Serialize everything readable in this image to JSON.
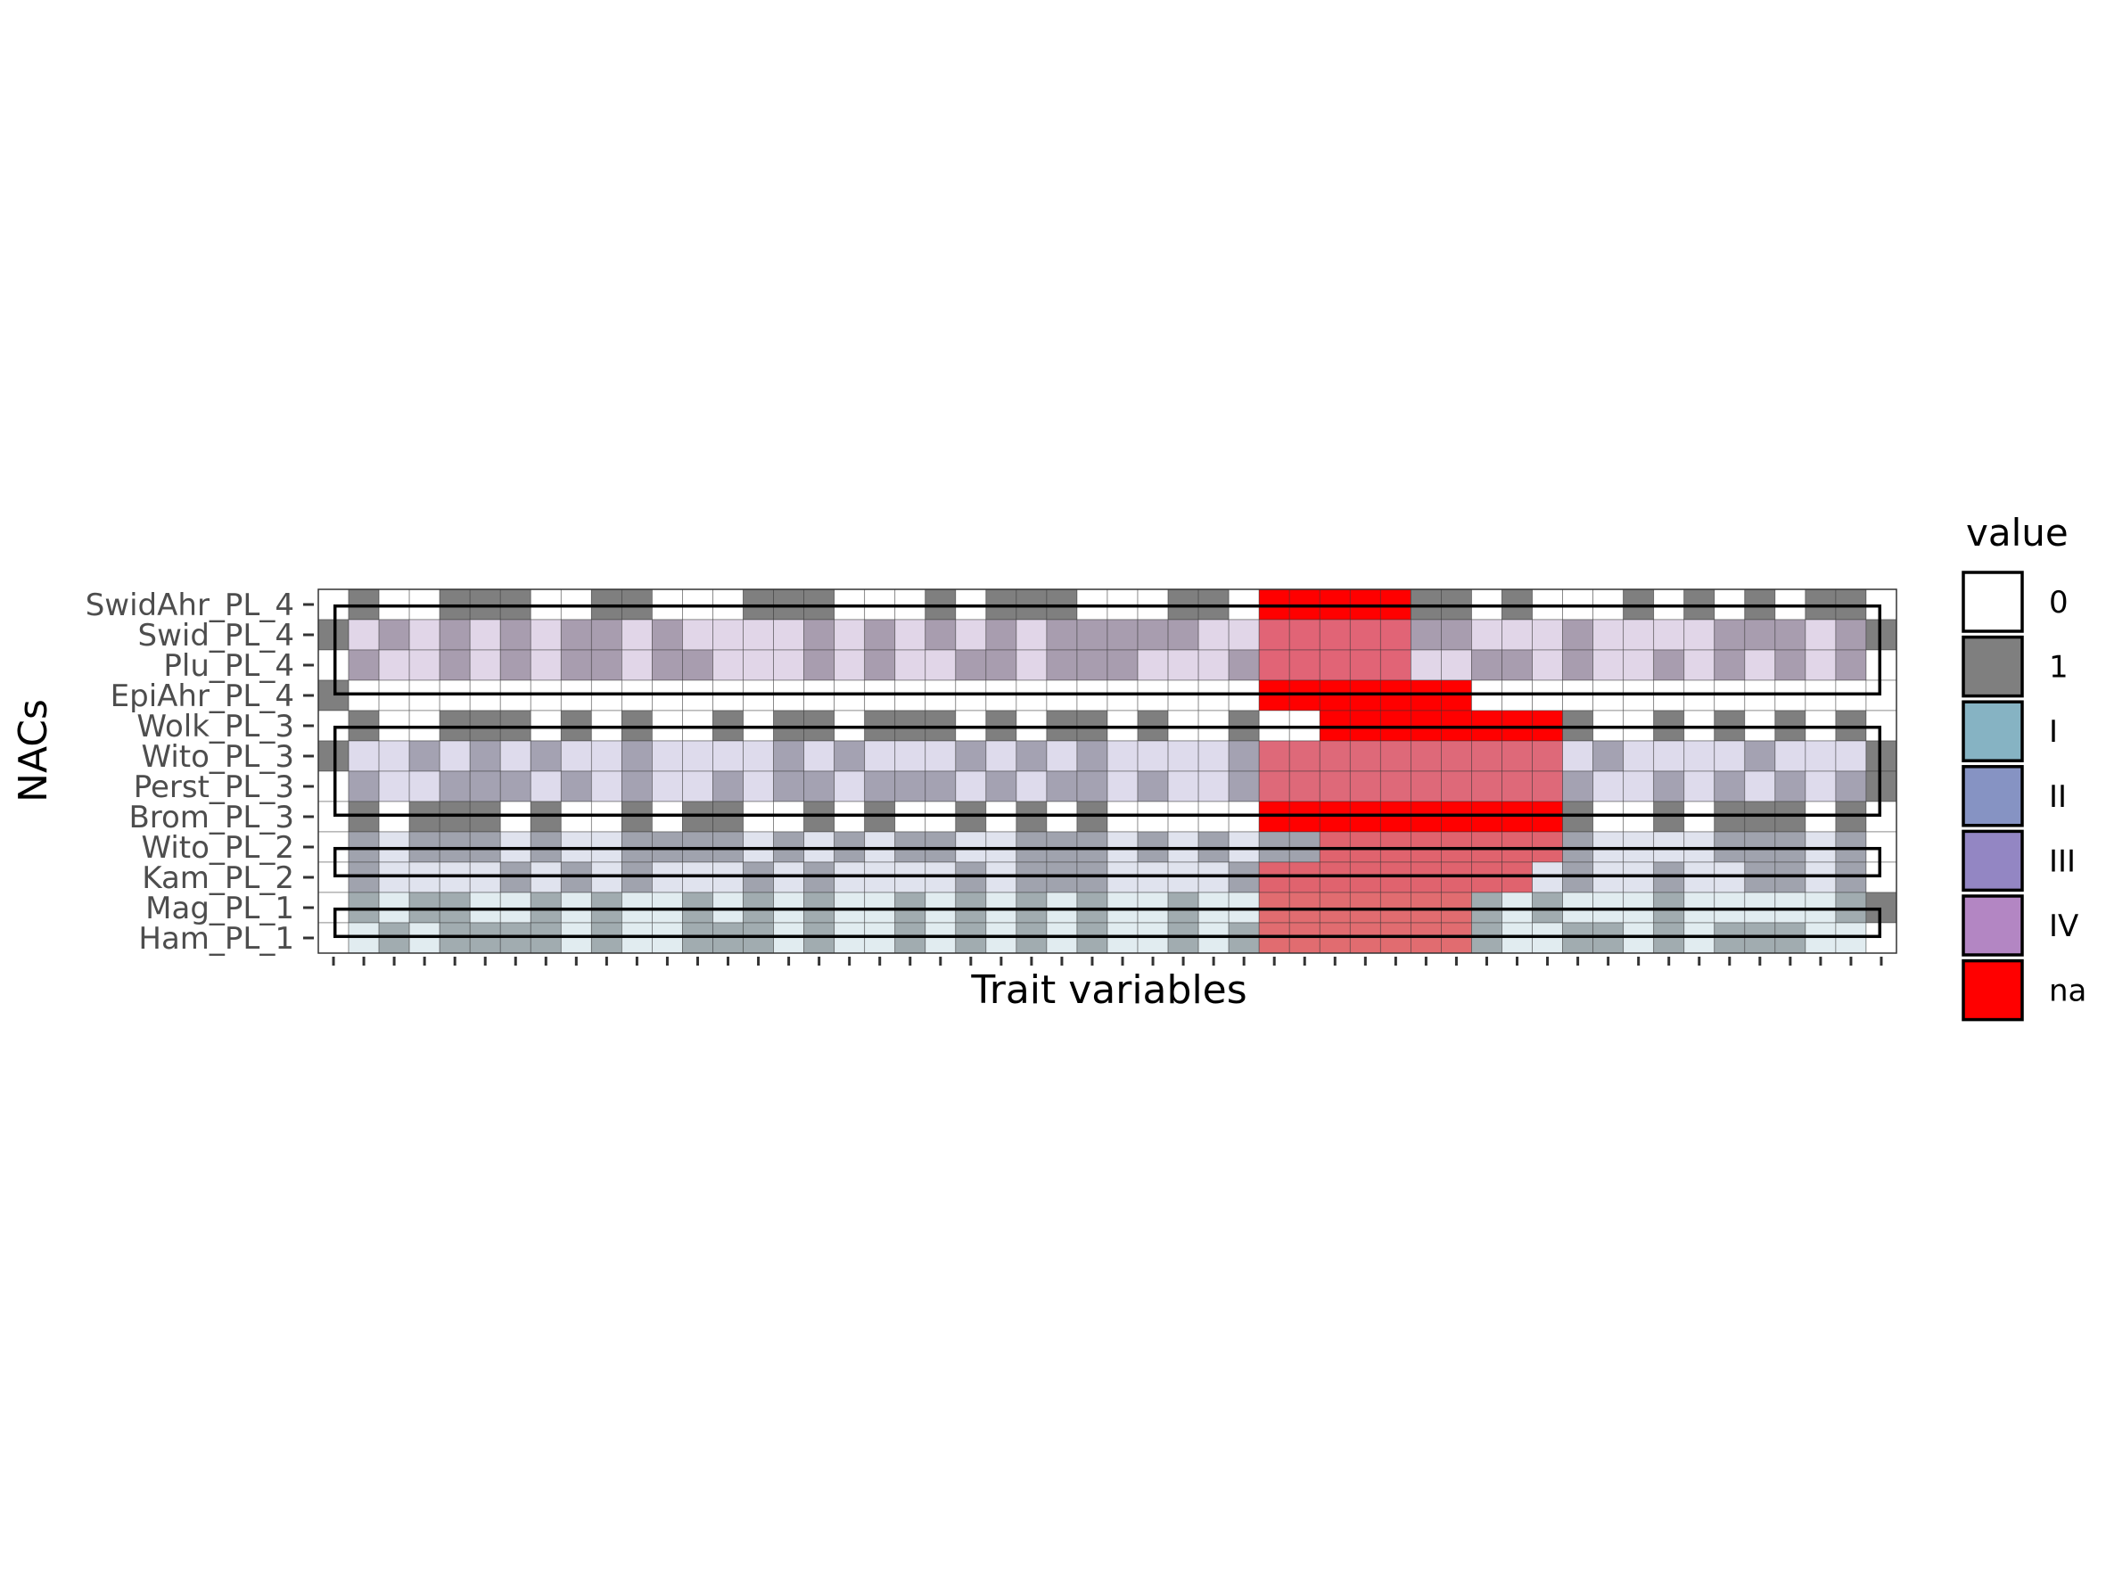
{
  "chart_data": {
    "type": "heatmap",
    "xlabel": "Trait variables",
    "ylabel": "NACs",
    "legend": {
      "title": "value",
      "position": "right",
      "items": [
        {
          "label": "0",
          "color": "#ffffff"
        },
        {
          "label": "1",
          "color": "#7f7f7f"
        },
        {
          "label": "I",
          "color": "#86b3c3"
        },
        {
          "label": "II",
          "color": "#8693c3"
        },
        {
          "label": "III",
          "color": "#9386c3"
        },
        {
          "label": "IV",
          "color": "#b386c3"
        },
        {
          "label": "na",
          "color": "#ff0000"
        }
      ]
    },
    "rows": [
      "SwidAhr_PL_4",
      "Swid_PL_4",
      "Plu_PL_4",
      "EpiAhr_PL_4",
      "Wolk_PL_3",
      "Wito_PL_3",
      "Perst_PL_3",
      "Brom_PL_3",
      "Wito_PL_2",
      "Kam_PL_2",
      "Mag_PL_1",
      "Ham_PL_1"
    ],
    "n_columns": 52,
    "cells": [
      "0100111001100011100010111000110100111101000101010110",
      "1010101011010000101010101111100001001100010000111011",
      "0100101011011000101001101110001101000011010010101010",
      "1000000000000000000000000000000000000000000000000000",
      "0100111010100101101110101101001001010000110010101010",
      "1001010100100001010001010100001000000011001000010001",
      "0100111010100101101110101101001001010000110010101011",
      "0101110100101100101001010100000000000001010010111010",
      "0101110100111101010110011101010110000010010000111010",
      "0100001010100010100001011100001000000000010010011010",
      "0101100101001010100101010100100001111110100010000011",
      "0010111101001110100101010100101001001010011010111000"
    ],
    "na_spans": [
      [
        [
          31,
          35
        ]
      ],
      [
        [
          31,
          35
        ]
      ],
      [
        [
          31,
          35
        ]
      ],
      [
        [
          31,
          37
        ]
      ],
      [
        [
          33,
          40
        ]
      ],
      [
        [
          31,
          40
        ]
      ],
      [
        [
          31,
          40
        ]
      ],
      [
        [
          31,
          40
        ]
      ],
      [
        [
          33,
          40
        ]
      ],
      [
        [
          31,
          39
        ]
      ],
      [
        [
          31,
          37
        ]
      ],
      [
        [
          31,
          37
        ]
      ]
    ],
    "groups": [
      {
        "rows": [
          0,
          3
        ],
        "class": "IV",
        "tint": "#c9b5d6"
      },
      {
        "rows": [
          4,
          7
        ],
        "class": "III",
        "tint": "#c3bedc"
      },
      {
        "rows": [
          8,
          9
        ],
        "class": "II",
        "tint": "#c1c6dc"
      },
      {
        "rows": [
          10,
          11
        ],
        "class": "I",
        "tint": "#c2d8e0"
      }
    ]
  }
}
